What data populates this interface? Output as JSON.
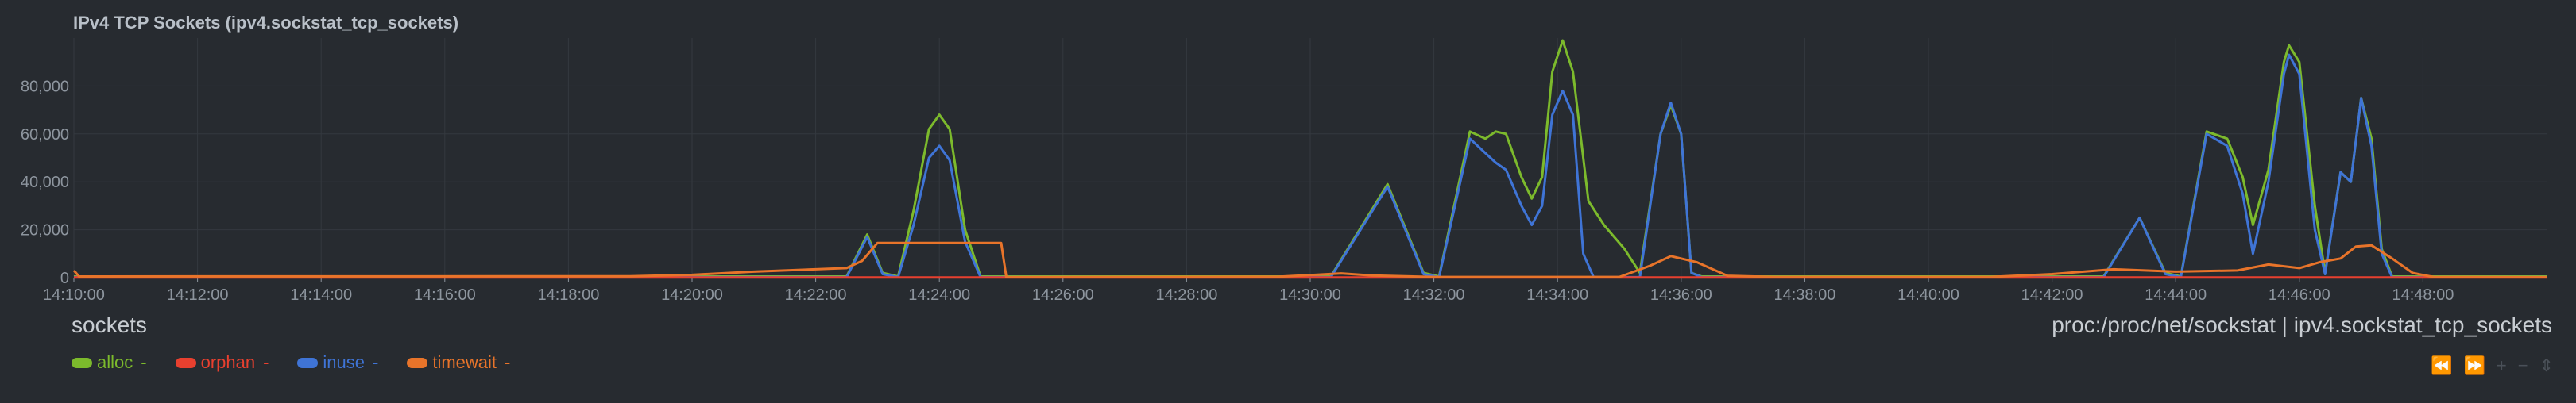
{
  "chart": {
    "title": "IPv4 TCP Sockets (ipv4.sockstat_tcp_sockets)",
    "units": "sockets",
    "source": "proc:/proc/net/sockstat | ipv4.sockstat_tcp_sockets",
    "colors": {
      "alloc": "#7cba2c",
      "orphan": "#e8402f",
      "inuse": "#3f74d6",
      "timewait": "#e8742a",
      "grid": "#34393f",
      "axis_text": "#8d959e"
    }
  },
  "legend": [
    {
      "name": "alloc",
      "value": "-",
      "color": "#7cba2c"
    },
    {
      "name": "orphan",
      "value": "-",
      "color": "#e8402f"
    },
    {
      "name": "inuse",
      "value": "-",
      "color": "#3f74d6"
    },
    {
      "name": "timewait",
      "value": "-",
      "color": "#e8742a"
    }
  ],
  "nav": {
    "rewind_icon": "⏪",
    "forward_icon": "⏩",
    "zoom_in_icon": "+",
    "zoom_out_icon": "−",
    "resize_icon": "⇕"
  },
  "chart_data": {
    "type": "line",
    "title": "IPv4 TCP Sockets (ipv4.sockstat_tcp_sockets)",
    "xlabel": "",
    "ylabel": "sockets",
    "xlim": [
      "14:10:00",
      "14:50:00"
    ],
    "ylim": [
      0,
      100000
    ],
    "x_ticks": [
      "14:10:00",
      "14:12:00",
      "14:14:00",
      "14:16:00",
      "14:18:00",
      "14:20:00",
      "14:22:00",
      "14:24:00",
      "14:26:00",
      "14:28:00",
      "14:30:00",
      "14:32:00",
      "14:34:00",
      "14:36:00",
      "14:38:00",
      "14:40:00",
      "14:42:00",
      "14:44:00",
      "14:46:00",
      "14:48:00"
    ],
    "y_ticks": [
      0,
      20000,
      40000,
      60000,
      80000
    ],
    "y_tick_labels": [
      "0",
      "20,000",
      "40,000",
      "60,000",
      "80,000"
    ],
    "grid": true,
    "series": [
      {
        "name": "alloc",
        "color": "#7cba2c",
        "points": [
          [
            "14:10:00",
            500
          ],
          [
            "14:22:30",
            500
          ],
          [
            "14:22:50",
            18000
          ],
          [
            "14:23:05",
            2000
          ],
          [
            "14:23:20",
            500
          ],
          [
            "14:23:35",
            28000
          ],
          [
            "14:23:50",
            62000
          ],
          [
            "14:24:00",
            68000
          ],
          [
            "14:24:10",
            62000
          ],
          [
            "14:24:25",
            20000
          ],
          [
            "14:24:40",
            500
          ],
          [
            "14:30:20",
            500
          ],
          [
            "14:31:15",
            39000
          ],
          [
            "14:31:50",
            2000
          ],
          [
            "14:32:05",
            500
          ],
          [
            "14:32:35",
            61000
          ],
          [
            "14:32:50",
            58000
          ],
          [
            "14:33:00",
            61000
          ],
          [
            "14:33:10",
            60000
          ],
          [
            "14:33:25",
            42000
          ],
          [
            "14:33:35",
            33000
          ],
          [
            "14:33:45",
            42000
          ],
          [
            "14:33:55",
            86000
          ],
          [
            "14:34:05",
            99000
          ],
          [
            "14:34:15",
            86000
          ],
          [
            "14:34:30",
            32000
          ],
          [
            "14:34:45",
            22000
          ],
          [
            "14:35:05",
            12000
          ],
          [
            "14:35:20",
            2000
          ],
          [
            "14:35:40",
            60000
          ],
          [
            "14:35:50",
            72000
          ],
          [
            "14:36:00",
            60000
          ],
          [
            "14:36:10",
            2000
          ],
          [
            "14:36:20",
            500
          ],
          [
            "14:42:50",
            500
          ],
          [
            "14:43:25",
            25000
          ],
          [
            "14:43:50",
            2000
          ],
          [
            "14:44:05",
            500
          ],
          [
            "14:44:30",
            61000
          ],
          [
            "14:44:50",
            58000
          ],
          [
            "14:45:05",
            42000
          ],
          [
            "14:45:15",
            22000
          ],
          [
            "14:45:30",
            45000
          ],
          [
            "14:45:45",
            90000
          ],
          [
            "14:45:50",
            97000
          ],
          [
            "14:46:00",
            90000
          ],
          [
            "14:46:15",
            30000
          ],
          [
            "14:46:25",
            2000
          ],
          [
            "14:46:40",
            44000
          ],
          [
            "14:46:50",
            40000
          ],
          [
            "14:47:00",
            75000
          ],
          [
            "14:47:10",
            58000
          ],
          [
            "14:47:20",
            12000
          ],
          [
            "14:47:30",
            500
          ],
          [
            "14:50:00",
            500
          ]
        ]
      },
      {
        "name": "orphan",
        "color": "#e8402f",
        "points": [
          [
            "14:10:00",
            100
          ],
          [
            "14:50:00",
            100
          ]
        ]
      },
      {
        "name": "inuse",
        "color": "#3f74d6",
        "points": [
          [
            "14:10:00",
            200
          ],
          [
            "14:22:30",
            200
          ],
          [
            "14:22:50",
            17000
          ],
          [
            "14:23:05",
            1500
          ],
          [
            "14:23:20",
            200
          ],
          [
            "14:23:35",
            22000
          ],
          [
            "14:23:50",
            50000
          ],
          [
            "14:24:00",
            55000
          ],
          [
            "14:24:10",
            49000
          ],
          [
            "14:24:25",
            15000
          ],
          [
            "14:24:40",
            200
          ],
          [
            "14:30:20",
            200
          ],
          [
            "14:31:15",
            38000
          ],
          [
            "14:31:50",
            1500
          ],
          [
            "14:32:05",
            200
          ],
          [
            "14:32:35",
            58000
          ],
          [
            "14:32:50",
            52000
          ],
          [
            "14:33:00",
            48000
          ],
          [
            "14:33:10",
            45000
          ],
          [
            "14:33:25",
            30000
          ],
          [
            "14:33:35",
            22000
          ],
          [
            "14:33:45",
            30000
          ],
          [
            "14:33:55",
            68000
          ],
          [
            "14:34:05",
            78000
          ],
          [
            "14:34:15",
            68000
          ],
          [
            "14:34:25",
            10000
          ],
          [
            "14:34:35",
            200
          ],
          [
            "14:35:20",
            200
          ],
          [
            "14:35:40",
            60000
          ],
          [
            "14:35:50",
            73000
          ],
          [
            "14:36:00",
            60000
          ],
          [
            "14:36:10",
            2000
          ],
          [
            "14:36:20",
            200
          ],
          [
            "14:42:50",
            200
          ],
          [
            "14:43:25",
            25000
          ],
          [
            "14:43:50",
            1500
          ],
          [
            "14:44:05",
            200
          ],
          [
            "14:44:30",
            60000
          ],
          [
            "14:44:50",
            55000
          ],
          [
            "14:45:05",
            35000
          ],
          [
            "14:45:15",
            10000
          ],
          [
            "14:45:30",
            40000
          ],
          [
            "14:45:45",
            85000
          ],
          [
            "14:45:50",
            93000
          ],
          [
            "14:46:00",
            85000
          ],
          [
            "14:46:15",
            20000
          ],
          [
            "14:46:25",
            1500
          ],
          [
            "14:46:40",
            44000
          ],
          [
            "14:46:50",
            40000
          ],
          [
            "14:47:00",
            75000
          ],
          [
            "14:47:10",
            55000
          ],
          [
            "14:47:20",
            10000
          ],
          [
            "14:47:30",
            200
          ],
          [
            "14:50:00",
            200
          ]
        ]
      },
      {
        "name": "timewait",
        "color": "#e8742a",
        "points": [
          [
            "14:10:00",
            3000
          ],
          [
            "14:10:05",
            500
          ],
          [
            "14:19:00",
            600
          ],
          [
            "14:20:00",
            1200
          ],
          [
            "14:21:00",
            2500
          ],
          [
            "14:22:00",
            3500
          ],
          [
            "14:22:30",
            4000
          ],
          [
            "14:22:45",
            7000
          ],
          [
            "14:23:00",
            14500
          ],
          [
            "14:25:00",
            14500
          ],
          [
            "14:25:05",
            200
          ],
          [
            "14:29:30",
            400
          ],
          [
            "14:30:30",
            1800
          ],
          [
            "14:31:00",
            900
          ],
          [
            "14:32:00",
            300
          ],
          [
            "14:35:00",
            300
          ],
          [
            "14:35:30",
            5000
          ],
          [
            "14:35:50",
            9000
          ],
          [
            "14:36:15",
            6500
          ],
          [
            "14:36:45",
            800
          ],
          [
            "14:37:30",
            300
          ],
          [
            "14:41:00",
            300
          ],
          [
            "14:42:00",
            1500
          ],
          [
            "14:43:00",
            3500
          ],
          [
            "14:44:00",
            2500
          ],
          [
            "14:45:00",
            3000
          ],
          [
            "14:45:30",
            5500
          ],
          [
            "14:46:00",
            4000
          ],
          [
            "14:46:20",
            6500
          ],
          [
            "14:46:40",
            8000
          ],
          [
            "14:46:55",
            13000
          ],
          [
            "14:47:10",
            13500
          ],
          [
            "14:47:30",
            8000
          ],
          [
            "14:47:50",
            2000
          ],
          [
            "14:48:10",
            300
          ],
          [
            "14:50:00",
            200
          ]
        ]
      }
    ]
  }
}
